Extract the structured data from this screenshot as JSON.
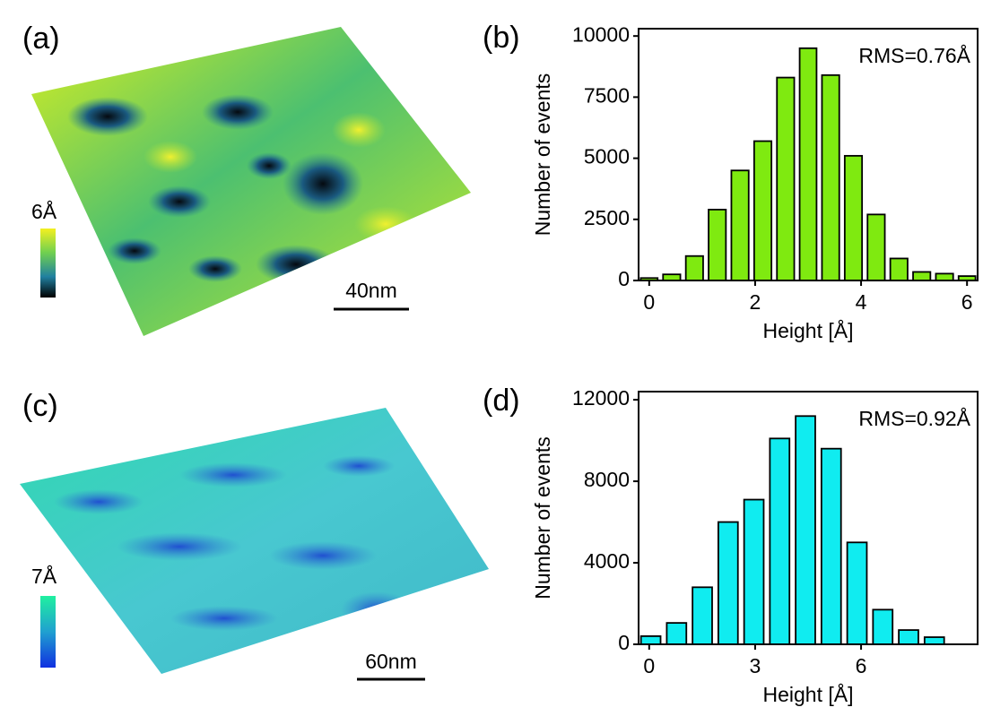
{
  "images": [
    {
      "panel_label": "(a)",
      "colorbar_label": "6Å",
      "scale_bar": "40nm"
    },
    {
      "panel_label": "(c)",
      "colorbar_label": "7Å",
      "scale_bar": "60nm"
    }
  ],
  "chart_data": [
    {
      "type": "histogram",
      "panel_label": "(b)",
      "annotation": "RMS=0.76Å",
      "xlabel": "Height [Å]",
      "ylabel": "Number of events",
      "color": "#7fea10",
      "bins": [
        -0.21,
        0.21,
        0.64,
        1.07,
        1.5,
        1.93,
        2.36,
        2.79,
        3.21,
        3.64,
        4.07,
        4.5,
        4.93,
        5.36,
        5.79,
        6.21
      ],
      "values": [
        100,
        250,
        1000,
        2900,
        4500,
        5700,
        8300,
        9500,
        8400,
        5100,
        2700,
        900,
        350,
        280,
        180
      ],
      "xlim": [
        -0.2,
        6.2
      ],
      "xticks": [
        0,
        2,
        4,
        6
      ],
      "ylim": [
        0,
        10300
      ],
      "yticks": [
        0,
        2500,
        5000,
        7500,
        10000
      ]
    },
    {
      "type": "histogram",
      "panel_label": "(d)",
      "annotation": "RMS=0.92Å",
      "xlabel": "Height [Å]",
      "ylabel": "Number of events",
      "color": "#10ecf0",
      "bins": [
        -0.32,
        0.41,
        1.14,
        1.87,
        2.6,
        3.33,
        4.06,
        4.79,
        5.52,
        6.25,
        6.98,
        7.71,
        8.44
      ],
      "values": [
        400,
        1050,
        2800,
        6000,
        7100,
        10100,
        11200,
        9600,
        5000,
        1700,
        700,
        350
      ],
      "xlim": [
        -0.3,
        9.3
      ],
      "xticks": [
        0,
        3,
        6
      ],
      "ylim": [
        0,
        12400
      ],
      "yticks": [
        0,
        4000,
        8000,
        12000
      ]
    }
  ]
}
